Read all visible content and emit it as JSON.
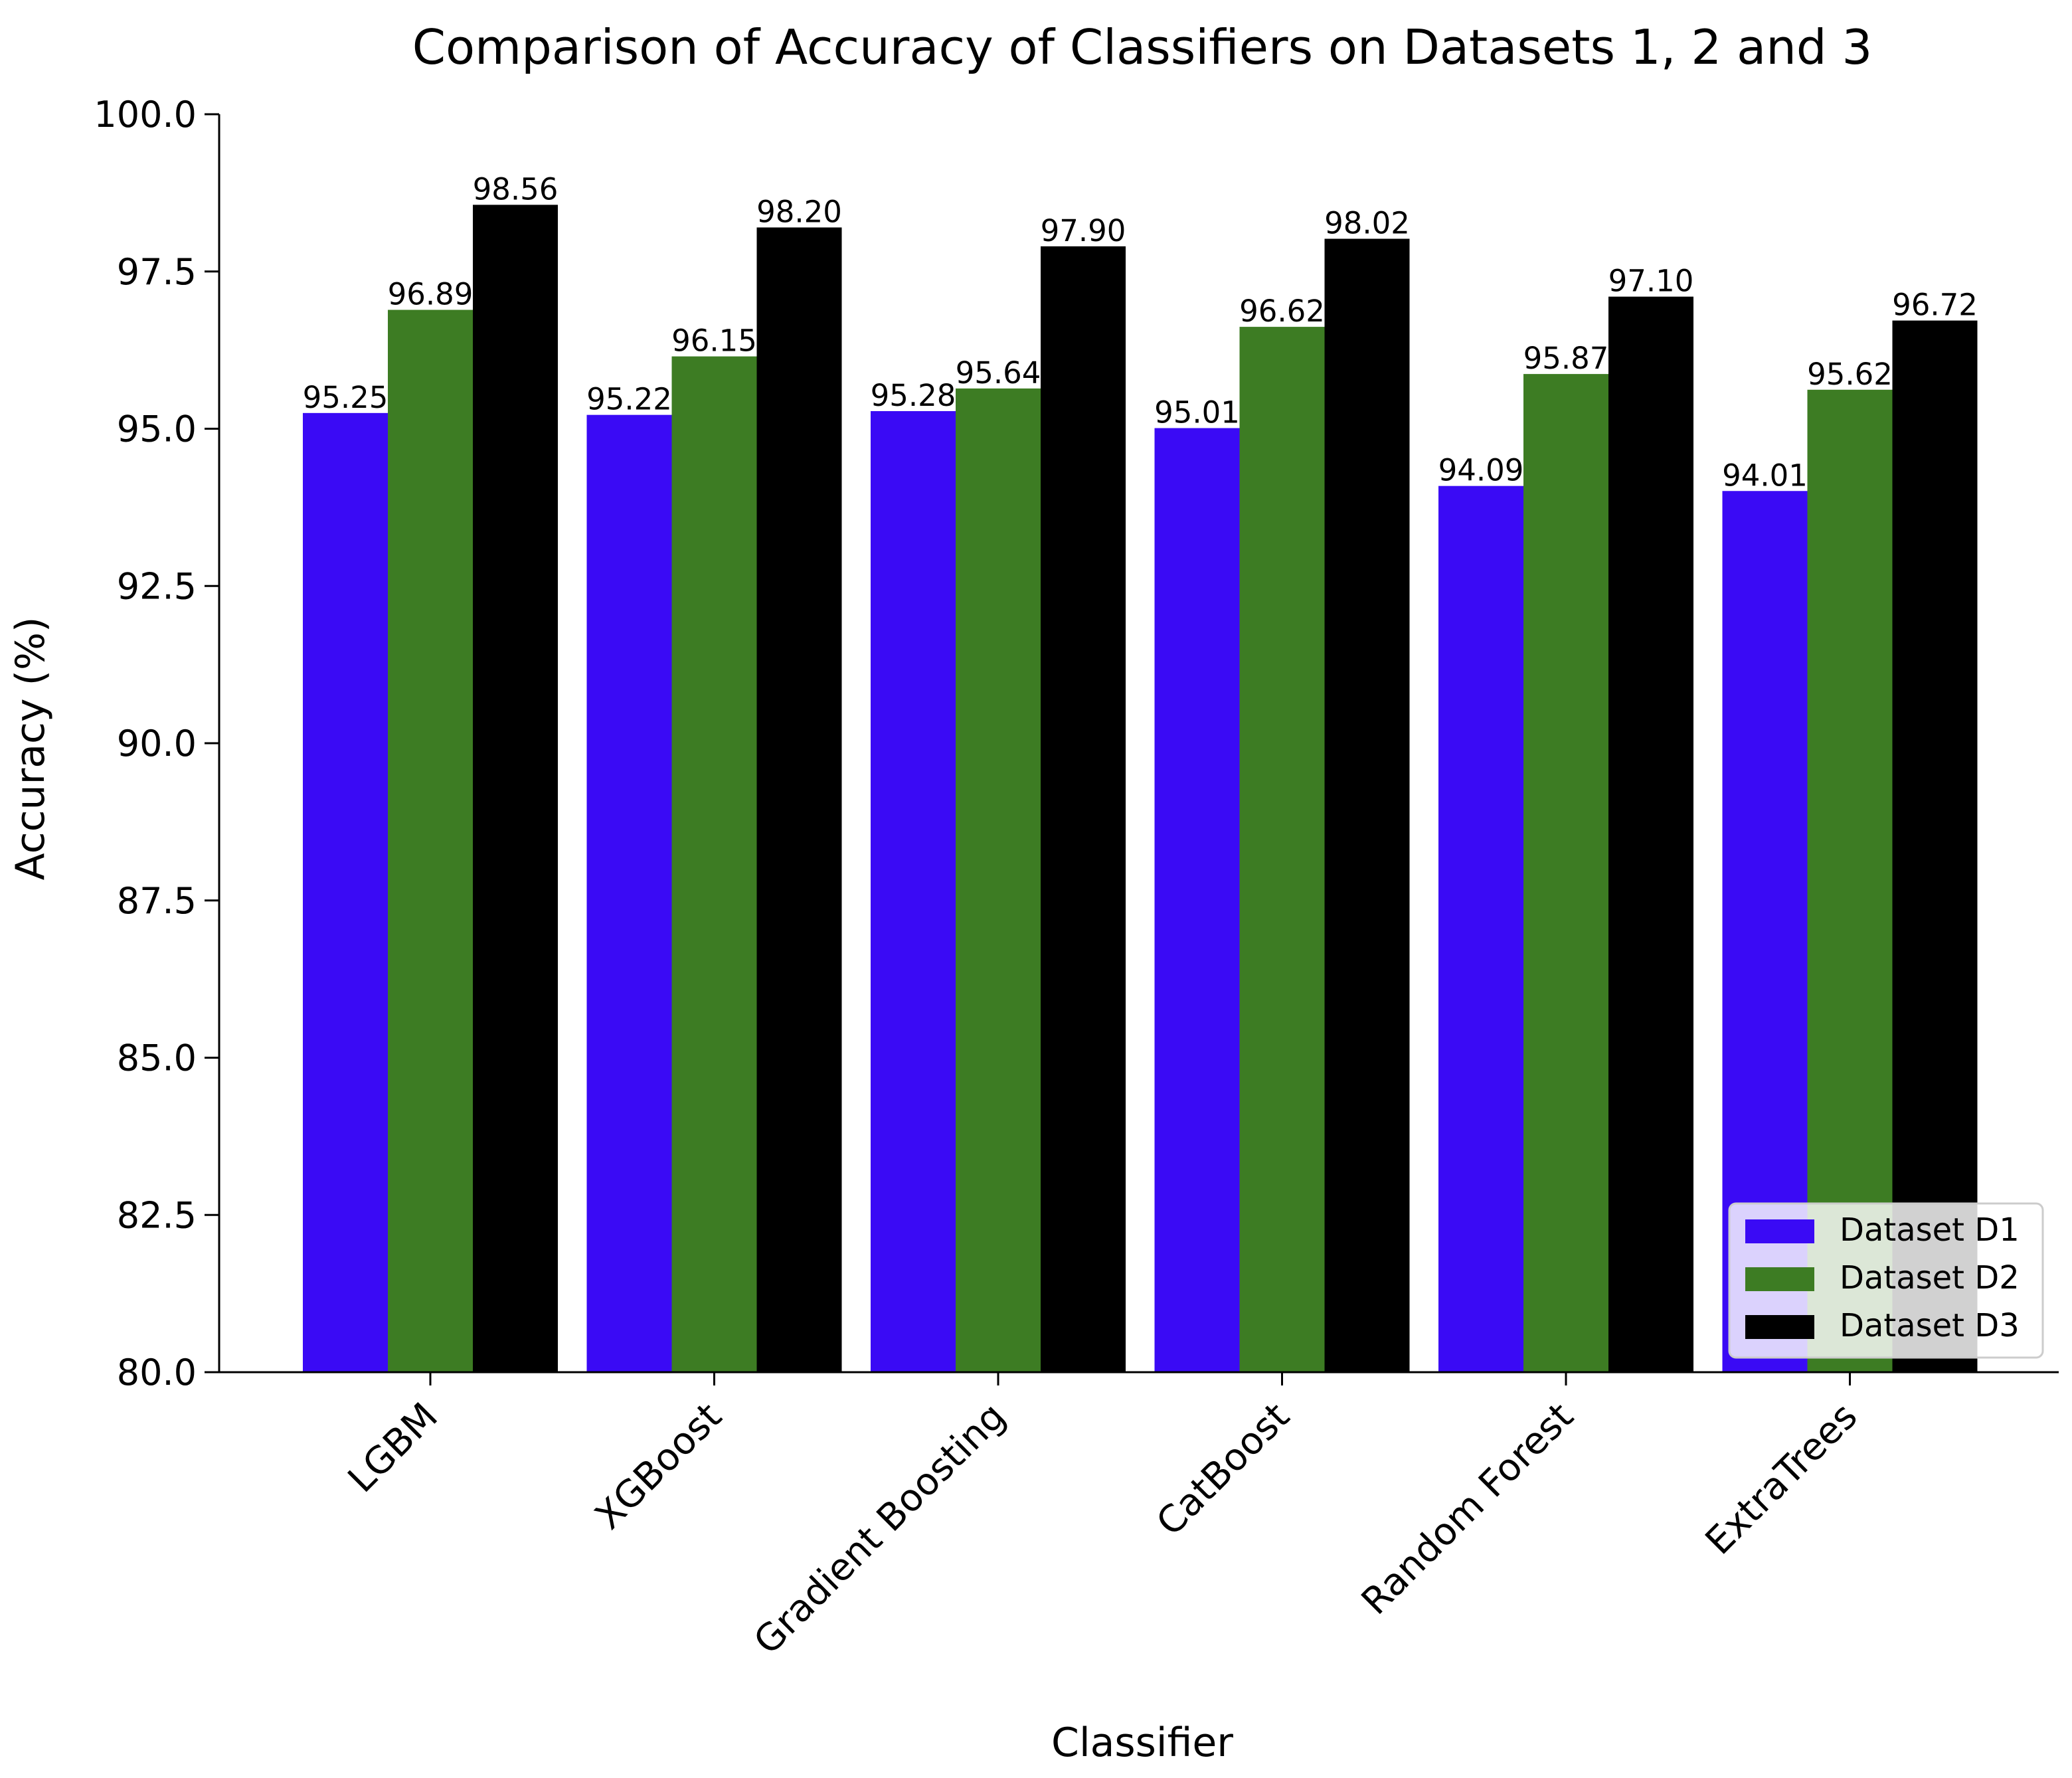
{
  "chart_data": {
    "type": "bar",
    "title": "Comparison of Accuracy of Classifiers on Datasets 1, 2 and 3",
    "xlabel": "Classifier",
    "ylabel": "Accuracy (%)",
    "ylim": [
      80,
      100
    ],
    "yticks": [
      "80.0",
      "82.5",
      "85.0",
      "87.5",
      "90.0",
      "92.5",
      "95.0",
      "97.5",
      "100.0"
    ],
    "categories": [
      "LGBM",
      "XGBoost",
      "Gradient Boosting",
      "CatBoost",
      "Random Forest",
      "ExtraTrees"
    ],
    "series": [
      {
        "name": "Dataset D1",
        "color": "#3a0af5",
        "values": [
          95.25,
          95.22,
          95.28,
          95.01,
          94.09,
          94.01
        ],
        "labels": [
          "95.25",
          "95.22",
          "95.28",
          "95.01",
          "94.09",
          "94.01"
        ]
      },
      {
        "name": "Dataset D2",
        "color": "#3d7c23",
        "values": [
          96.89,
          96.15,
          95.64,
          96.62,
          95.87,
          95.62
        ],
        "labels": [
          "96.89",
          "96.15",
          "95.64",
          "96.62",
          "95.87",
          "95.62"
        ]
      },
      {
        "name": "Dataset D3",
        "color": "#000000",
        "values": [
          98.56,
          98.2,
          97.9,
          98.02,
          97.1,
          96.72
        ],
        "labels": [
          "98.56",
          "98.20",
          "97.90",
          "98.02",
          "97.10",
          "96.72"
        ]
      }
    ],
    "legend_position": "lower-right",
    "grid": false
  }
}
